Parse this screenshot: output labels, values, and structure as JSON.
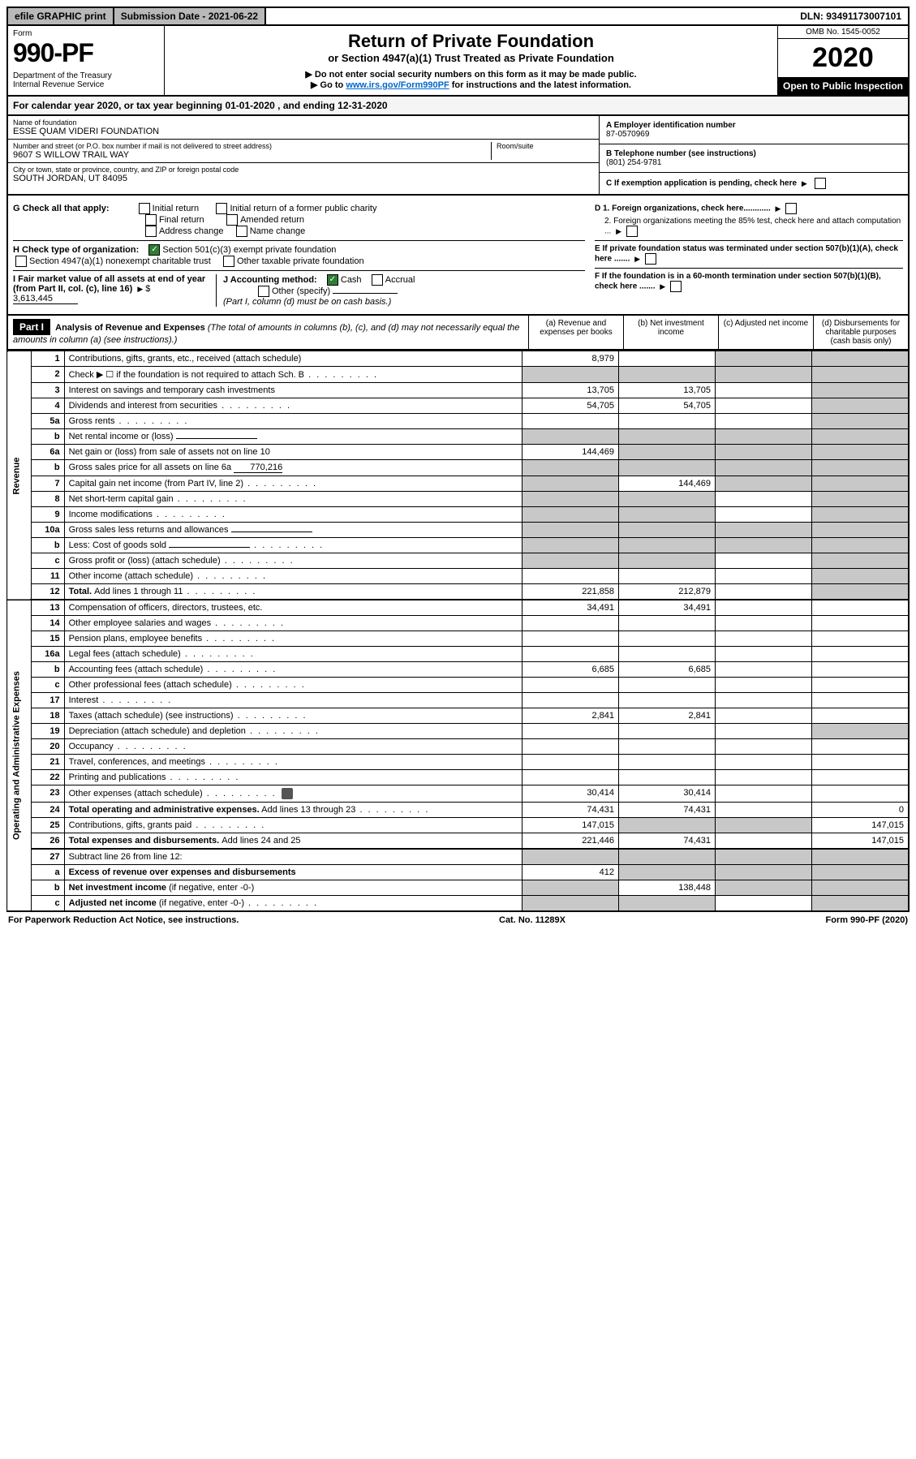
{
  "topbar": {
    "efile": "efile GRAPHIC print",
    "submission": "Submission Date - 2021-06-22",
    "dln": "DLN: 93491173007101"
  },
  "header": {
    "form_label": "Form",
    "form_number": "990-PF",
    "dept": "Department of the Treasury\nInternal Revenue Service",
    "title": "Return of Private Foundation",
    "subtitle": "or Section 4947(a)(1) Trust Treated as Private Foundation",
    "note1": "▶ Do not enter social security numbers on this form as it may be made public.",
    "note2_prefix": "▶ Go to ",
    "note2_link": "www.irs.gov/Form990PF",
    "note2_suffix": " for instructions and the latest information.",
    "omb": "OMB No. 1545-0052",
    "year": "2020",
    "open": "Open to Public Inspection"
  },
  "calendar": "For calendar year 2020, or tax year beginning 01-01-2020                             , and ending 12-31-2020",
  "entity": {
    "name_label": "Name of foundation",
    "name": "ESSE QUAM VIDERI FOUNDATION",
    "addr_label": "Number and street (or P.O. box number if mail is not delivered to street address)",
    "addr": "9607 S WILLOW TRAIL WAY",
    "room_label": "Room/suite",
    "city_label": "City or town, state or province, country, and ZIP or foreign postal code",
    "city": "SOUTH JORDAN, UT  84095",
    "a_label": "A Employer identification number",
    "a_value": "87-0570969",
    "b_label": "B Telephone number (see instructions)",
    "b_value": "(801) 254-9781",
    "c_label": "C If exemption application is pending, check here",
    "d1": "D 1. Foreign organizations, check here............",
    "d2": "2. Foreign organizations meeting the 85% test, check here and attach computation ...",
    "e_label": "E  If private foundation status was terminated under section 507(b)(1)(A), check here .......",
    "f_label": "F  If the foundation is in a 60-month termination under section 507(b)(1)(B), check here ......."
  },
  "g": {
    "label": "G Check all that apply:",
    "opts": [
      "Initial return",
      "Final return",
      "Address change",
      "Initial return of a former public charity",
      "Amended return",
      "Name change"
    ]
  },
  "h": {
    "label": "H Check type of organization:",
    "opt1": "Section 501(c)(3) exempt private foundation",
    "opt2": "Section 4947(a)(1) nonexempt charitable trust",
    "opt3": "Other taxable private foundation"
  },
  "i": {
    "label": "I Fair market value of all assets at end of year (from Part II, col. (c), line 16)",
    "value": "3,613,445"
  },
  "j": {
    "label": "J Accounting method:",
    "cash": "Cash",
    "accrual": "Accrual",
    "other": "Other (specify)",
    "note": "(Part I, column (d) must be on cash basis.)"
  },
  "part1": {
    "label": "Part I",
    "title": "Analysis of Revenue and Expenses",
    "title_note": "(The total of amounts in columns (b), (c), and (d) may not necessarily equal the amounts in column (a) (see instructions).)",
    "col_a": "(a)   Revenue and expenses per books",
    "col_b": "(b)   Net investment income",
    "col_c": "(c)   Adjusted net income",
    "col_d": "(d)   Disbursements for charitable purposes (cash basis only)"
  },
  "side": {
    "revenue": "Revenue",
    "expenses": "Operating and Administrative Expenses"
  },
  "rows": [
    {
      "n": "1",
      "label": "Contributions, gifts, grants, etc., received (attach schedule)",
      "a": "8,979",
      "b": "",
      "c": "shade",
      "d": "shade"
    },
    {
      "n": "2",
      "label": "Check ▶ ☐ if the foundation is not required to attach Sch. B",
      "dots": true,
      "a": "shade",
      "b": "shade",
      "c": "shade",
      "d": "shade"
    },
    {
      "n": "3",
      "label": "Interest on savings and temporary cash investments",
      "a": "13,705",
      "b": "13,705",
      "c": "",
      "d": "shade"
    },
    {
      "n": "4",
      "label": "Dividends and interest from securities",
      "dots": true,
      "a": "54,705",
      "b": "54,705",
      "c": "",
      "d": "shade"
    },
    {
      "n": "5a",
      "label": "Gross rents",
      "dots": true,
      "a": "",
      "b": "",
      "c": "",
      "d": "shade"
    },
    {
      "n": "b",
      "label": "Net rental income or (loss)",
      "a": "shade",
      "b": "shade",
      "c": "shade",
      "d": "shade",
      "inline_box": true
    },
    {
      "n": "6a",
      "label": "Net gain or (loss) from sale of assets not on line 10",
      "a": "144,469",
      "b": "shade",
      "c": "shade",
      "d": "shade"
    },
    {
      "n": "b",
      "label": "Gross sales price for all assets on line 6a",
      "inline_val": "770,216",
      "a": "shade",
      "b": "shade",
      "c": "shade",
      "d": "shade"
    },
    {
      "n": "7",
      "label": "Capital gain net income (from Part IV, line 2)",
      "dots": true,
      "a": "shade",
      "b": "144,469",
      "c": "shade",
      "d": "shade"
    },
    {
      "n": "8",
      "label": "Net short-term capital gain",
      "dots": true,
      "a": "shade",
      "b": "shade",
      "c": "",
      "d": "shade"
    },
    {
      "n": "9",
      "label": "Income modifications",
      "dots": true,
      "a": "shade",
      "b": "shade",
      "c": "",
      "d": "shade"
    },
    {
      "n": "10a",
      "label": "Gross sales less returns and allowances",
      "a": "shade",
      "b": "shade",
      "c": "shade",
      "d": "shade",
      "inline_box": true
    },
    {
      "n": "b",
      "label": "Less: Cost of goods sold",
      "dots": true,
      "a": "shade",
      "b": "shade",
      "c": "shade",
      "d": "shade",
      "inline_box": true
    },
    {
      "n": "c",
      "label": "Gross profit or (loss) (attach schedule)",
      "dots": true,
      "a": "shade",
      "b": "shade",
      "c": "",
      "d": "shade"
    },
    {
      "n": "11",
      "label": "Other income (attach schedule)",
      "dots": true,
      "a": "",
      "b": "",
      "c": "",
      "d": "shade"
    },
    {
      "n": "12",
      "label_bold": "Total. ",
      "label": "Add lines 1 through 11",
      "dots": true,
      "a": "221,858",
      "b": "212,879",
      "c": "",
      "d": "shade",
      "heavy_bottom": true
    },
    {
      "n": "13",
      "label": "Compensation of officers, directors, trustees, etc.",
      "a": "34,491",
      "b": "34,491",
      "c": "",
      "d": ""
    },
    {
      "n": "14",
      "label": "Other employee salaries and wages",
      "dots": true,
      "a": "",
      "b": "",
      "c": "",
      "d": ""
    },
    {
      "n": "15",
      "label": "Pension plans, employee benefits",
      "dots": true,
      "a": "",
      "b": "",
      "c": "",
      "d": ""
    },
    {
      "n": "16a",
      "label": "Legal fees (attach schedule)",
      "dots": true,
      "a": "",
      "b": "",
      "c": "",
      "d": ""
    },
    {
      "n": "b",
      "label": "Accounting fees (attach schedule)",
      "dots": true,
      "a": "6,685",
      "b": "6,685",
      "c": "",
      "d": ""
    },
    {
      "n": "c",
      "label": "Other professional fees (attach schedule)",
      "dots": true,
      "a": "",
      "b": "",
      "c": "",
      "d": ""
    },
    {
      "n": "17",
      "label": "Interest",
      "dots": true,
      "a": "",
      "b": "",
      "c": "",
      "d": ""
    },
    {
      "n": "18",
      "label": "Taxes (attach schedule) (see instructions)",
      "dots": true,
      "a": "2,841",
      "b": "2,841",
      "c": "",
      "d": ""
    },
    {
      "n": "19",
      "label": "Depreciation (attach schedule) and depletion",
      "dots": true,
      "a": "",
      "b": "",
      "c": "",
      "d": "shade"
    },
    {
      "n": "20",
      "label": "Occupancy",
      "dots": true,
      "a": "",
      "b": "",
      "c": "",
      "d": ""
    },
    {
      "n": "21",
      "label": "Travel, conferences, and meetings",
      "dots": true,
      "a": "",
      "b": "",
      "c": "",
      "d": ""
    },
    {
      "n": "22",
      "label": "Printing and publications",
      "dots": true,
      "a": "",
      "b": "",
      "c": "",
      "d": ""
    },
    {
      "n": "23",
      "label": "Other expenses (attach schedule)",
      "dots": true,
      "icon": true,
      "a": "30,414",
      "b": "30,414",
      "c": "",
      "d": ""
    },
    {
      "n": "24",
      "label_bold": "Total operating and administrative expenses.",
      "label": " Add lines 13 through 23",
      "dots": true,
      "a": "74,431",
      "b": "74,431",
      "c": "",
      "d": "0"
    },
    {
      "n": "25",
      "label": "Contributions, gifts, grants paid",
      "dots": true,
      "a": "147,015",
      "b": "shade",
      "c": "shade",
      "d": "147,015"
    },
    {
      "n": "26",
      "label_bold": "Total expenses and disbursements. ",
      "label": "Add lines 24 and 25",
      "a": "221,446",
      "b": "74,431",
      "c": "",
      "d": "147,015",
      "heavy_bottom": true
    },
    {
      "n": "27",
      "label": "Subtract line 26 from line 12:",
      "a": "shade",
      "b": "shade",
      "c": "shade",
      "d": "shade"
    },
    {
      "n": "a",
      "label_bold": "Excess of revenue over expenses and disbursements",
      "a": "412",
      "b": "shade",
      "c": "shade",
      "d": "shade"
    },
    {
      "n": "b",
      "label_bold": "Net investment income ",
      "label": "(if negative, enter -0-)",
      "a": "shade",
      "b": "138,448",
      "c": "shade",
      "d": "shade"
    },
    {
      "n": "c",
      "label_bold": "Adjusted net income ",
      "label": "(if negative, enter -0-)",
      "dots": true,
      "a": "shade",
      "b": "shade",
      "c": "",
      "d": "shade"
    }
  ],
  "footer": {
    "left": "For Paperwork Reduction Act Notice, see instructions.",
    "center": "Cat. No. 11289X",
    "right": "Form 990-PF (2020)"
  },
  "colors": {
    "shade": "#c8c8c8",
    "black": "#000000",
    "link": "#0066cc",
    "green_check": "#2e7d32",
    "topbar_gray": "#b8b8b8"
  }
}
